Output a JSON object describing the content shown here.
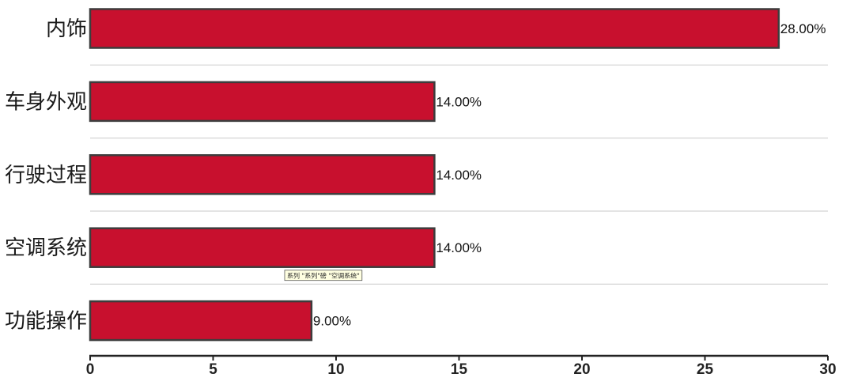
{
  "chart_data": {
    "type": "bar",
    "orientation": "horizontal",
    "categories": [
      "内饰",
      "车身外观",
      "行驶过程",
      "空调系统",
      "功能操作"
    ],
    "values": [
      28,
      14,
      14,
      14,
      9
    ],
    "value_labels": [
      "28.00%",
      "14.00%",
      "14.00%",
      "14.00%",
      "9.00%"
    ],
    "xlim": [
      0,
      30
    ],
    "xticks": [
      0,
      5,
      10,
      15,
      20,
      25,
      30
    ],
    "title": "",
    "xlabel": "",
    "ylabel": "",
    "grid": "horizontal separators between categories",
    "bar_color": "#c8102e",
    "bar_border_color": "#3d3d3d",
    "tooltip": {
      "text": "系列 \"系列\"磅 \"空调系统\"",
      "category": "空调系统"
    }
  }
}
